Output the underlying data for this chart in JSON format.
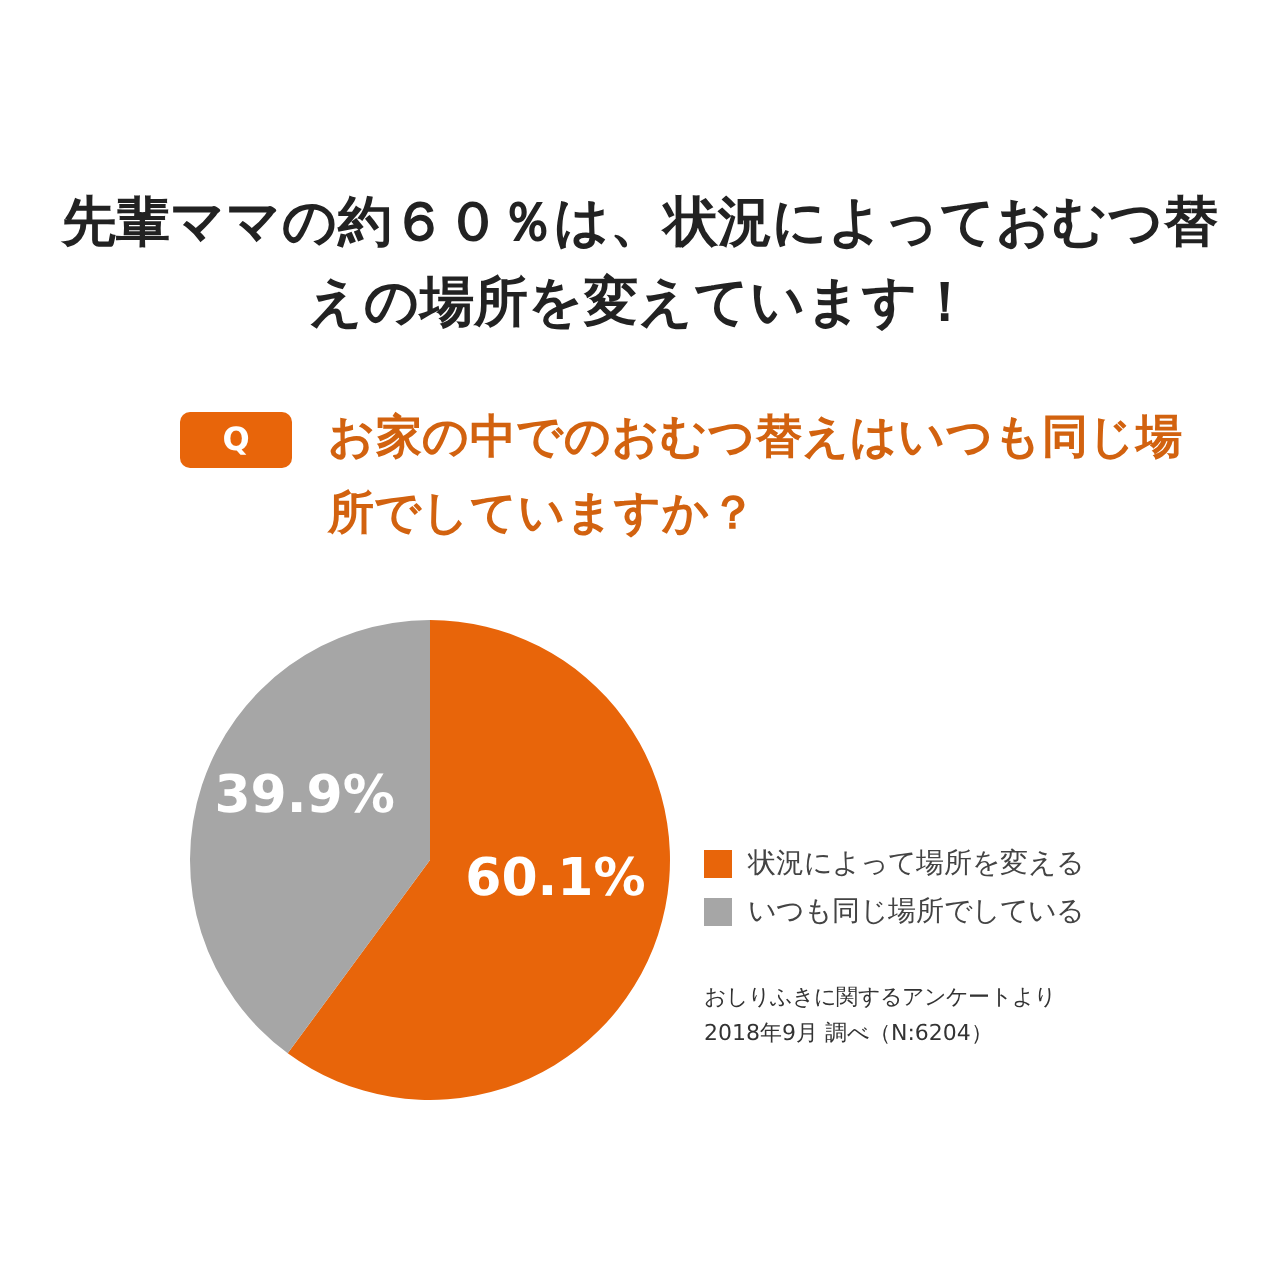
{
  "chart_data": {
    "type": "pie",
    "title": "先輩ママの約６０％は、状況によっておむつ替えの場所を変えています！",
    "subtitle": "お家の中でのおむつ替えはいつも同じ場所でしていますか？",
    "categories": [
      "状況によって場所を変える",
      "いつも同じ場所でしている"
    ],
    "values": [
      60.1,
      39.9
    ],
    "colors": [
      "#e8650a",
      "#a6a6a6"
    ],
    "value_labels": [
      "60.1%",
      "39.9%"
    ],
    "legend": "right",
    "annotations": [
      "Q",
      "おしりふきに関するアンケートより",
      "2018年9月 調べ（N:6204）"
    ]
  }
}
